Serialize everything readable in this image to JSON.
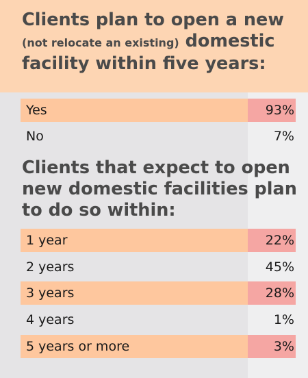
{
  "section1": {
    "title_line1": "Clients plan to open a new",
    "title_small": "(not relocate an existing)",
    "title_line2_rest": "domestic",
    "title_line3": "facility within five years:"
  },
  "section2": {
    "title_line1": "Clients that expect to open",
    "title_line2": "new domestic facilities plan",
    "title_line3": "to do so within:"
  },
  "chart_data": [
    {
      "type": "table",
      "title": "Clients plan to open a new (not relocate an existing) domestic facility within five years:",
      "categories": [
        "Yes",
        "No"
      ],
      "values": [
        93,
        7
      ],
      "value_labels": [
        "93%",
        "7%"
      ]
    },
    {
      "type": "table",
      "title": "Clients that expect to open new domestic facilities plan to do so within:",
      "categories": [
        "1 year",
        "2 years",
        "3 years",
        "4 years",
        "5 years or more"
      ],
      "values": [
        22,
        45,
        28,
        1,
        3
      ],
      "value_labels": [
        "22%",
        "45%",
        "28%",
        "1%",
        "3%"
      ]
    }
  ],
  "colors": {
    "header_bg": "#fdd5b3",
    "bar_highlight": "#fec79e",
    "value_highlight": "#f5a6a3",
    "page_bg": "#e5e4e6"
  }
}
